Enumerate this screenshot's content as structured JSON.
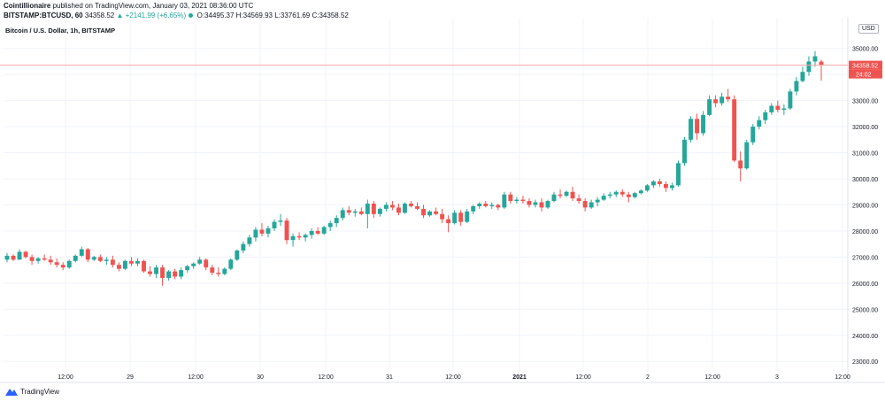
{
  "header": {
    "author": "Cointillionaire",
    "published_text": "published on TradingView.com, January 03, 2021 08:36:00 UTC",
    "symbol": "BITSTAMP:BTCUSD, 60",
    "last_price": "34358.52",
    "change": "▲ +2141.99 (+6.65%)",
    "ohlc": "O:34495.37 H:34569.93 L:33761.69 C:34358.52"
  },
  "series_title": "Bitcoin / U.S. Dollar, 1h, BITSTAMP",
  "currency": "USD",
  "footer": {
    "brand": "TradingView"
  },
  "colors": {
    "up": "#26a69a",
    "down": "#ef5350",
    "grid": "#f0f3fa",
    "axis": "#787b86",
    "lastline": "#f7a7a7"
  },
  "chart_data": {
    "type": "candlestick",
    "ylim": [
      22600,
      35500
    ],
    "yticks": [
      23000,
      24000,
      25000,
      26000,
      27000,
      28000,
      29000,
      30000,
      31000,
      32000,
      33000,
      34000,
      35000
    ],
    "ytick_labels": [
      "23000.00",
      "24000.00",
      "25000.00",
      "26000.00",
      "27000.00",
      "28000.00",
      "29000.00",
      "30000.00",
      "31000.00",
      "32000.00",
      "33000.00",
      "34000.00",
      "35000.00"
    ],
    "xticks": [
      "12:00",
      "29",
      "12:00",
      "30",
      "12:00",
      "31",
      "12:00",
      "2021",
      "12:00",
      "2",
      "12:00",
      "3",
      "12:00"
    ],
    "last_price_label": "34358.52",
    "countdown_label": "24:02",
    "candles": [
      [
        26900,
        27150,
        26800,
        27050
      ],
      [
        27050,
        27100,
        26850,
        26900
      ],
      [
        26900,
        27300,
        26900,
        27200
      ],
      [
        27200,
        27250,
        26950,
        27000
      ],
      [
        27000,
        27100,
        26700,
        26850
      ],
      [
        26850,
        27000,
        26750,
        26950
      ],
      [
        26950,
        27100,
        26850,
        26900
      ],
      [
        26900,
        27050,
        26700,
        26800
      ],
      [
        26800,
        26950,
        26600,
        26700
      ],
      [
        26700,
        26800,
        26500,
        26600
      ],
      [
        26600,
        26900,
        26550,
        26850
      ],
      [
        26850,
        27100,
        26800,
        27050
      ],
      [
        27050,
        27400,
        27000,
        27300
      ],
      [
        27300,
        27350,
        26800,
        26900
      ],
      [
        26900,
        27050,
        26850,
        27000
      ],
      [
        27000,
        27100,
        26800,
        26850
      ],
      [
        26850,
        27000,
        26700,
        26900
      ],
      [
        26900,
        27050,
        26600,
        26700
      ],
      [
        26700,
        26800,
        26450,
        26550
      ],
      [
        26550,
        26900,
        26500,
        26850
      ],
      [
        26850,
        27000,
        26650,
        26750
      ],
      [
        26750,
        26950,
        26650,
        26850
      ],
      [
        26850,
        26900,
        26400,
        26450
      ],
      [
        26450,
        26650,
        26250,
        26350
      ],
      [
        26350,
        26700,
        26200,
        26600
      ],
      [
        26600,
        26700,
        25900,
        26200
      ],
      [
        26200,
        26500,
        26100,
        26450
      ],
      [
        26450,
        26550,
        26150,
        26250
      ],
      [
        26250,
        26600,
        26150,
        26500
      ],
      [
        26500,
        26700,
        26400,
        26650
      ],
      [
        26650,
        26800,
        26550,
        26750
      ],
      [
        26750,
        27000,
        26700,
        26900
      ],
      [
        26900,
        26950,
        26500,
        26600
      ],
      [
        26600,
        26700,
        26300,
        26400
      ],
      [
        26400,
        26600,
        26250,
        26350
      ],
      [
        26350,
        26600,
        26300,
        26550
      ],
      [
        26550,
        26950,
        26500,
        26900
      ],
      [
        26900,
        27300,
        26850,
        27250
      ],
      [
        27250,
        27600,
        27150,
        27500
      ],
      [
        27500,
        27850,
        27400,
        27750
      ],
      [
        27750,
        28150,
        27600,
        28050
      ],
      [
        28050,
        28300,
        27800,
        27900
      ],
      [
        27900,
        28200,
        27750,
        28100
      ],
      [
        28100,
        28450,
        28000,
        28350
      ],
      [
        28350,
        28650,
        28200,
        28400
      ],
      [
        28400,
        28500,
        27500,
        27650
      ],
      [
        27650,
        27900,
        27400,
        27800
      ],
      [
        27800,
        27950,
        27650,
        27750
      ],
      [
        27750,
        27900,
        27600,
        27850
      ],
      [
        27850,
        28100,
        27700,
        28000
      ],
      [
        28000,
        28150,
        27850,
        27900
      ],
      [
        27900,
        28200,
        27850,
        28150
      ],
      [
        28150,
        28400,
        28000,
        28300
      ],
      [
        28300,
        28600,
        28150,
        28500
      ],
      [
        28500,
        28900,
        28400,
        28800
      ],
      [
        28800,
        28950,
        28600,
        28700
      ],
      [
        28700,
        28850,
        28550,
        28750
      ],
      [
        28750,
        28900,
        28600,
        28650
      ],
      [
        28650,
        29200,
        28100,
        29050
      ],
      [
        29050,
        29150,
        28500,
        28650
      ],
      [
        28650,
        28900,
        28550,
        28850
      ],
      [
        28850,
        29100,
        28750,
        29000
      ],
      [
        29000,
        29150,
        28800,
        28900
      ],
      [
        28900,
        29050,
        28600,
        28700
      ],
      [
        28700,
        29100,
        28650,
        29050
      ],
      [
        29050,
        29150,
        28900,
        28950
      ],
      [
        28950,
        29100,
        28800,
        28850
      ],
      [
        28850,
        29000,
        28500,
        28600
      ],
      [
        28600,
        28800,
        28550,
        28750
      ],
      [
        28750,
        28900,
        28600,
        28650
      ],
      [
        28650,
        28850,
        28300,
        28450
      ],
      [
        28450,
        28600,
        27950,
        28300
      ],
      [
        28300,
        28800,
        28250,
        28700
      ],
      [
        28700,
        28800,
        28200,
        28350
      ],
      [
        28350,
        28850,
        28300,
        28750
      ],
      [
        28750,
        29000,
        28650,
        28950
      ],
      [
        28950,
        29100,
        28850,
        29050
      ],
      [
        29050,
        29150,
        28900,
        28950
      ],
      [
        28950,
        29100,
        28850,
        29000
      ],
      [
        29000,
        29050,
        28800,
        28900
      ],
      [
        28900,
        29500,
        28850,
        29400
      ],
      [
        29400,
        29500,
        29050,
        29150
      ],
      [
        29150,
        29300,
        29050,
        29200
      ],
      [
        29200,
        29350,
        29050,
        29150
      ],
      [
        29150,
        29250,
        28900,
        29000
      ],
      [
        29000,
        29200,
        28900,
        29100
      ],
      [
        29100,
        29250,
        28750,
        28900
      ],
      [
        28900,
        29200,
        28850,
        29150
      ],
      [
        29150,
        29500,
        29100,
        29400
      ],
      [
        29400,
        29600,
        29250,
        29350
      ],
      [
        29350,
        29550,
        29300,
        29500
      ],
      [
        29500,
        29700,
        29150,
        29250
      ],
      [
        29250,
        29400,
        29050,
        29150
      ],
      [
        29150,
        29250,
        28750,
        28900
      ],
      [
        28900,
        29200,
        28850,
        29100
      ],
      [
        29100,
        29300,
        28950,
        29200
      ],
      [
        29200,
        29450,
        29150,
        29350
      ],
      [
        29350,
        29500,
        29250,
        29400
      ],
      [
        29400,
        29550,
        29300,
        29500
      ],
      [
        29500,
        29600,
        29300,
        29400
      ],
      [
        29400,
        29500,
        29100,
        29300
      ],
      [
        29300,
        29500,
        29250,
        29450
      ],
      [
        29450,
        29600,
        29400,
        29550
      ],
      [
        29550,
        29800,
        29500,
        29750
      ],
      [
        29750,
        29950,
        29650,
        29900
      ],
      [
        29900,
        30000,
        29700,
        29800
      ],
      [
        29800,
        29900,
        29500,
        29650
      ],
      [
        29650,
        29850,
        29550,
        29750
      ],
      [
        29750,
        30700,
        29700,
        30600
      ],
      [
        30600,
        31600,
        30500,
        31500
      ],
      [
        31500,
        32400,
        31400,
        32300
      ],
      [
        32300,
        32500,
        31500,
        31750
      ],
      [
        31750,
        32600,
        31650,
        32450
      ],
      [
        32450,
        33200,
        32400,
        33050
      ],
      [
        33050,
        33200,
        32750,
        32900
      ],
      [
        32900,
        33300,
        32800,
        33150
      ],
      [
        33150,
        33450,
        32950,
        33050
      ],
      [
        33050,
        33200,
        30650,
        30700
      ],
      [
        30700,
        31050,
        29900,
        30400
      ],
      [
        30400,
        31500,
        30350,
        31400
      ],
      [
        31400,
        32100,
        31300,
        32000
      ],
      [
        32000,
        32400,
        31900,
        32250
      ],
      [
        32250,
        32650,
        32100,
        32550
      ],
      [
        32550,
        32900,
        32450,
        32800
      ],
      [
        32800,
        33000,
        32550,
        32650
      ],
      [
        32650,
        32850,
        32450,
        32700
      ],
      [
        32700,
        33450,
        32650,
        33350
      ],
      [
        33350,
        33900,
        33200,
        33750
      ],
      [
        33750,
        34300,
        33700,
        34100
      ],
      [
        34100,
        34700,
        33950,
        34500
      ],
      [
        34500,
        34900,
        34300,
        34700
      ],
      [
        34495.37,
        34569.93,
        33761.69,
        34358.52
      ]
    ]
  }
}
